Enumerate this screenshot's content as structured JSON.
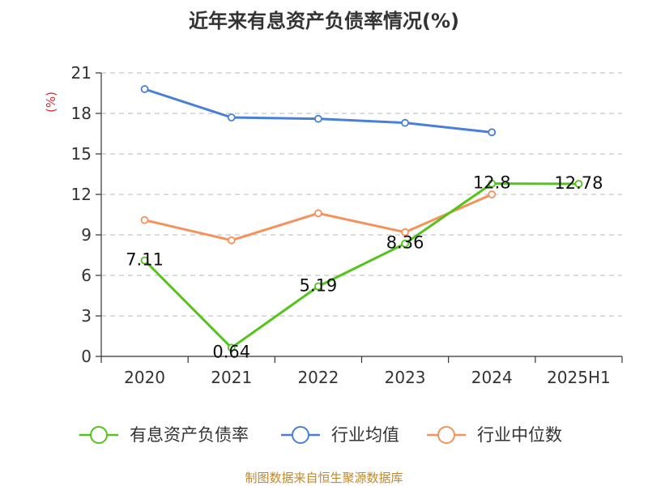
{
  "chart_data": {
    "type": "line",
    "title": "近年来有息资产负债率情况(%)",
    "ylabel": "(%)",
    "categories": [
      "2020",
      "2021",
      "2022",
      "2023",
      "2024",
      "2025H1"
    ],
    "ylim": [
      0,
      21
    ],
    "yticks": [
      "0",
      "3",
      "6",
      "9",
      "12",
      "15",
      "18",
      "21"
    ],
    "grid": true,
    "legend_position": "bottom",
    "series": [
      {
        "name": "有息资产负债率",
        "color": "#52c41a",
        "values": [
          7.11,
          0.64,
          5.19,
          8.36,
          12.8,
          12.78
        ],
        "labels": [
          "7.11",
          "0.64",
          "5.19",
          "8.36",
          "12.8",
          "12.78"
        ]
      },
      {
        "name": "行业均值",
        "color": "#4a7fd9",
        "values": [
          19.8,
          17.7,
          17.6,
          17.3,
          16.6,
          null
        ]
      },
      {
        "name": "行业中位数",
        "color": "#f5915a",
        "values": [
          10.1,
          8.6,
          10.6,
          9.2,
          12.0,
          null
        ]
      }
    ]
  },
  "footer": {
    "source": "制图数据来自恒生聚源数据库"
  }
}
